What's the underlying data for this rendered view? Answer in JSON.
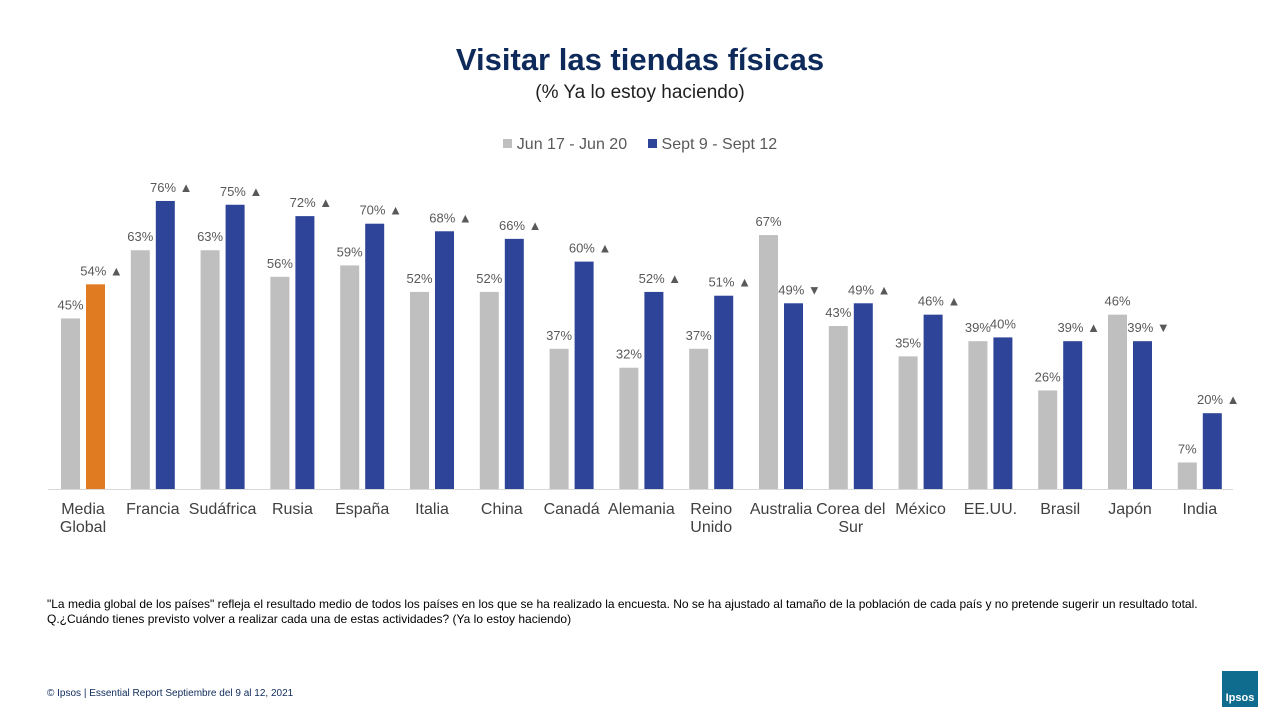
{
  "header": {
    "title": "Visitar las tiendas físicas",
    "subtitle": "(%  Ya lo estoy haciendo)"
  },
  "chart_data": {
    "type": "bar",
    "categories": [
      "Media Global",
      "Francia",
      "Sudáfrica",
      "Rusia",
      "España",
      "Italia",
      "China",
      "Canadá",
      "Alemania",
      "Reino Unido",
      "Australia",
      "Corea del Sur",
      "México",
      "EE.UU.",
      "Brasil",
      "Japón",
      "India"
    ],
    "category_lines": [
      [
        "Media",
        "Global"
      ],
      [
        "Francia"
      ],
      [
        "Sudáfrica"
      ],
      [
        "Rusia"
      ],
      [
        "España"
      ],
      [
        "Italia"
      ],
      [
        "China"
      ],
      [
        "Canadá"
      ],
      [
        "Alemania"
      ],
      [
        "Reino",
        "Unido"
      ],
      [
        "Australia"
      ],
      [
        "Corea del",
        "Sur"
      ],
      [
        "México"
      ],
      [
        "EE.UU."
      ],
      [
        "Brasil"
      ],
      [
        "Japón"
      ],
      [
        "India"
      ]
    ],
    "series": [
      {
        "name": "Jun 17 - Jun 20",
        "color": "#bfbfbf",
        "values": [
          45,
          63,
          63,
          56,
          59,
          52,
          52,
          37,
          32,
          37,
          67,
          43,
          35,
          39,
          26,
          46,
          7
        ]
      },
      {
        "name": "Sept 9 - Sept 12",
        "color": "#2e4499",
        "highlight_color": "#e07b22",
        "values": [
          54,
          76,
          75,
          72,
          70,
          68,
          66,
          60,
          52,
          51,
          49,
          49,
          46,
          40,
          39,
          39,
          20
        ],
        "trend": [
          "up",
          "up",
          "up",
          "up",
          "up",
          "up",
          "up",
          "up",
          "up",
          "up",
          "down",
          "up",
          "up",
          "",
          "up",
          "down",
          "up"
        ]
      }
    ],
    "value_suffix": "%",
    "trend_symbols": {
      "up": "▲",
      "down": "▼"
    },
    "ylim": [
      0,
      100
    ],
    "legend_position": "top-center",
    "grid": false
  },
  "notes": {
    "line1": "\"La media global de los países\" refleja el resultado medio de todos los países en los que se ha realizado la encuesta. No se ha ajustado al tamaño de la población de cada país y no pretende sugerir un resultado total.",
    "line2": "Q.¿Cuándo tienes previsto volver  a realizar cada una de estas actividades?  (Ya lo estoy haciendo)"
  },
  "footer": {
    "text": "© Ipsos |  Essential Report  Septiembre del  9 al 12, 2021",
    "logo_text": "Ipsos"
  }
}
